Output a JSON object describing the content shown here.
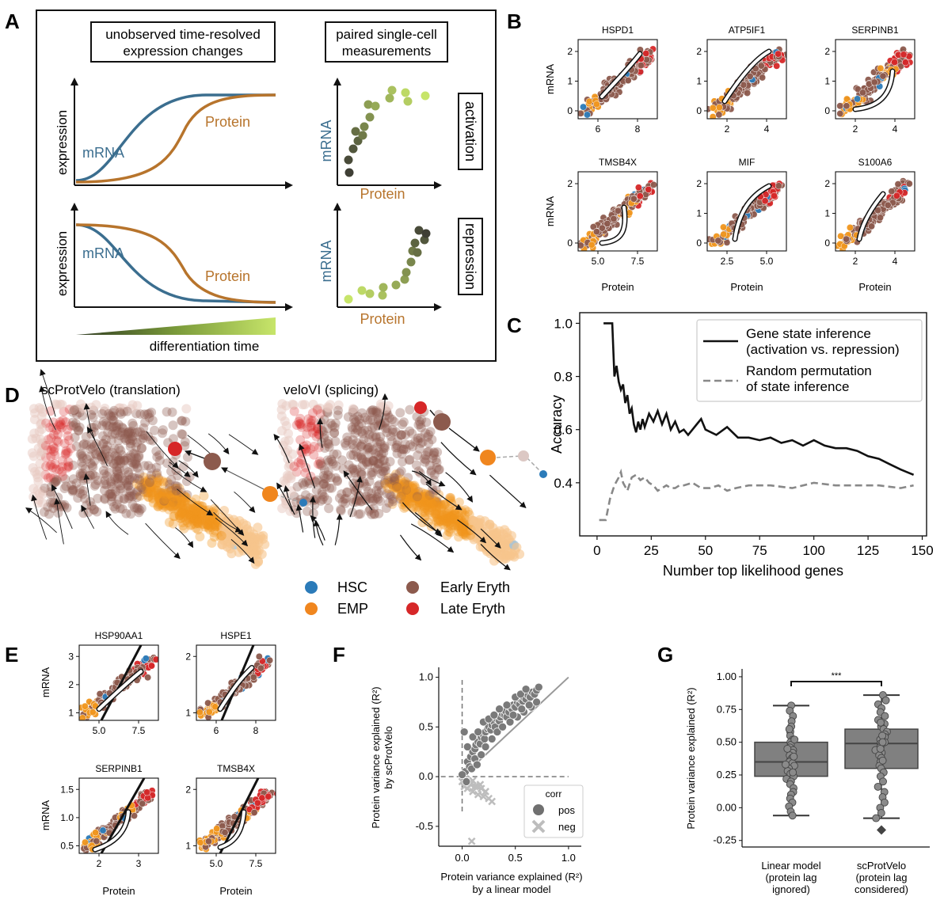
{
  "panel_labels": {
    "a": "A",
    "b": "B",
    "c": "C",
    "d": "D",
    "e": "E",
    "f": "F",
    "g": "G"
  },
  "panel_a": {
    "box_left": "unobserved time-resolved expression changes",
    "box_left_line1": "unobserved time-resolved",
    "box_left_line2": "expression changes",
    "box_right_line1": "paired single-cell",
    "box_right_line2": "measurements",
    "y_label": "expression",
    "mrna": "mRNA",
    "protein": "Protein",
    "activation": "activation",
    "repression": "repression",
    "time_label": "differentiation time",
    "colors": {
      "mrna": "#3b6e8f",
      "protein": "#b7742c",
      "dark": "#3f3f35",
      "light": "#c7e56a"
    }
  },
  "panel_b": {
    "genes": [
      "HSPD1",
      "ATP5IF1",
      "SERPINB1",
      "TMSB4X",
      "MIF",
      "S100A6"
    ],
    "y_label": "mRNA",
    "x_label": "Protein",
    "xticks": [
      [
        "6",
        "8"
      ],
      [
        "2",
        "4"
      ],
      [
        "2",
        "4"
      ],
      [
        "5.0",
        "7.5"
      ],
      [
        "2.5",
        "5.0"
      ],
      [
        "2",
        "4"
      ]
    ],
    "yticks": [
      [
        "0",
        "1",
        "2"
      ],
      [
        "0",
        "1",
        "2"
      ],
      [
        "0",
        "1",
        "2"
      ],
      [
        "0",
        "2"
      ],
      [
        "0",
        "1",
        "2"
      ],
      [
        "0",
        "1",
        "2"
      ]
    ]
  },
  "panel_c": {
    "chart_data": {
      "type": "line",
      "xlabel": "Number top likelihood genes",
      "ylabel": "Accuracy",
      "xlim": [
        -8,
        152
      ],
      "ylim": [
        0.2,
        1.04
      ],
      "xticks": [
        "0",
        "25",
        "50",
        "75",
        "100",
        "125",
        "150"
      ],
      "yticks": [
        "0.4",
        "0.6",
        "0.8",
        "1.0"
      ],
      "legend": "top-right",
      "series": [
        {
          "name": "Gene state inference (activation vs. repression)",
          "line1": "Gene state inference",
          "line2": "(activation vs. repression)",
          "style": "solid",
          "x": [
            3,
            7,
            8,
            9,
            10,
            11,
            12,
            13,
            14,
            15,
            16,
            17,
            18,
            19,
            20,
            21,
            22,
            24,
            26,
            28,
            30,
            32,
            34,
            36,
            38,
            40,
            42,
            44,
            46,
            48,
            50,
            55,
            60,
            65,
            70,
            75,
            80,
            85,
            90,
            95,
            100,
            105,
            110,
            115,
            120,
            125,
            130,
            135,
            140,
            146
          ],
          "y": [
            1.0,
            1.0,
            0.8,
            0.84,
            0.78,
            0.75,
            0.77,
            0.7,
            0.73,
            0.66,
            0.68,
            0.62,
            0.59,
            0.63,
            0.6,
            0.64,
            0.61,
            0.66,
            0.63,
            0.67,
            0.62,
            0.66,
            0.6,
            0.63,
            0.59,
            0.6,
            0.58,
            0.6,
            0.62,
            0.64,
            0.6,
            0.58,
            0.61,
            0.57,
            0.57,
            0.56,
            0.57,
            0.55,
            0.56,
            0.54,
            0.56,
            0.54,
            0.53,
            0.53,
            0.52,
            0.5,
            0.49,
            0.47,
            0.45,
            0.43
          ]
        },
        {
          "name": "Random permutation of state inference",
          "line1": "Random permutation",
          "line2": "of state inference",
          "style": "dashed",
          "x": [
            1,
            4,
            6,
            8,
            10,
            11,
            12,
            14,
            16,
            18,
            20,
            22,
            24,
            26,
            28,
            30,
            32,
            34,
            36,
            38,
            40,
            44,
            48,
            52,
            56,
            60,
            64,
            70,
            80,
            90,
            100,
            110,
            120,
            130,
            140,
            146
          ],
          "y": [
            0.26,
            0.26,
            0.34,
            0.39,
            0.42,
            0.44,
            0.4,
            0.37,
            0.42,
            0.43,
            0.41,
            0.42,
            0.4,
            0.39,
            0.37,
            0.38,
            0.39,
            0.38,
            0.38,
            0.39,
            0.39,
            0.4,
            0.38,
            0.38,
            0.39,
            0.37,
            0.38,
            0.39,
            0.39,
            0.38,
            0.4,
            0.39,
            0.39,
            0.39,
            0.38,
            0.39
          ]
        }
      ]
    }
  },
  "panel_d": {
    "left_title": "scProtVelo (translation)",
    "right_title": "veloVI (splicing)",
    "legend": [
      {
        "name": "HSC",
        "color": "#2b7bb9"
      },
      {
        "name": "EMP",
        "color": "#f0861e"
      },
      {
        "name": "Early Eryth",
        "color": "#8c5a4d"
      },
      {
        "name": "Late Eryth",
        "color": "#d62728"
      }
    ]
  },
  "panel_e": {
    "genes": [
      "HSP90AA1",
      "HSPE1",
      "SERPINB1",
      "TMSB4X"
    ],
    "y_label": "mRNA",
    "x_label": "Protein",
    "xticks": [
      [
        "5.0",
        "7.5"
      ],
      [
        "6",
        "8"
      ],
      [
        "2",
        "3"
      ],
      [
        "5.0",
        "7.5"
      ]
    ],
    "yticks": [
      [
        "1",
        "2",
        "3"
      ],
      [
        "1",
        "2"
      ],
      [
        "0.5",
        "1.0",
        "1.5"
      ],
      [
        "1",
        "2"
      ]
    ]
  },
  "panel_f": {
    "chart_data": {
      "type": "scatter",
      "xlabel_line1": "Protein variance explained (R²)",
      "xlabel_line2": "by a linear model",
      "ylabel_line1": "Protein variance explained (R²)",
      "ylabel_line2": "by scProtVelo",
      "xlim": [
        -0.22,
        1.12
      ],
      "ylim": [
        -0.7,
        1.1
      ],
      "xticks": [
        "0.0",
        "0.5",
        "1.0"
      ],
      "yticks": [
        "-0.5",
        "0.0",
        "0.5",
        "1.0"
      ],
      "legend_title": "corr",
      "legend_pos": "pos",
      "legend_neg": "neg",
      "series": [
        {
          "name": "pos",
          "x": [
            0.05,
            0.08,
            0.1,
            0.12,
            0.13,
            0.15,
            0.17,
            0.18,
            0.2,
            0.21,
            0.22,
            0.24,
            0.25,
            0.27,
            0.28,
            0.3,
            0.31,
            0.33,
            0.35,
            0.36,
            0.38,
            0.4,
            0.41,
            0.42,
            0.44,
            0.45,
            0.47,
            0.48,
            0.5,
            0.52,
            0.54,
            0.55,
            0.57,
            0.58,
            0.6,
            0.62,
            0.64,
            0.66,
            0.68,
            0.7,
            0.72,
            0.05,
            0.02,
            0.1,
            0.15,
            0.2,
            0.25,
            0.3,
            0.35,
            0.42,
            0.5,
            0.55,
            0.6,
            0.03,
            0.07,
            0.12,
            0.18,
            0.22,
            0.28,
            0.33,
            0.38,
            0.45,
            0.52,
            0.58,
            0.65,
            0.7,
            0.0,
            0.04,
            0.09,
            0.14,
            0.48,
            0.56,
            0.63
          ],
          "y": [
            0.15,
            0.2,
            0.25,
            0.28,
            0.32,
            0.35,
            0.33,
            0.4,
            0.42,
            0.38,
            0.45,
            0.48,
            0.5,
            0.47,
            0.52,
            0.55,
            0.5,
            0.58,
            0.56,
            0.6,
            0.63,
            0.62,
            0.66,
            0.6,
            0.65,
            0.7,
            0.68,
            0.72,
            0.7,
            0.75,
            0.73,
            0.78,
            0.76,
            0.8,
            0.78,
            0.82,
            0.8,
            0.85,
            0.83,
            0.87,
            0.9,
            0.3,
            0.45,
            0.4,
            0.45,
            0.55,
            0.58,
            0.62,
            0.68,
            0.72,
            0.8,
            0.83,
            0.88,
            0.05,
            0.1,
            0.18,
            0.22,
            0.3,
            0.38,
            0.45,
            0.5,
            0.55,
            0.6,
            0.65,
            0.7,
            0.75,
            0.02,
            -0.05,
            0.08,
            0.12,
            0.62,
            0.68,
            0.72
          ]
        },
        {
          "name": "neg",
          "x": [
            0.0,
            0.02,
            0.05,
            0.08,
            0.1,
            0.12,
            0.15,
            0.18,
            0.2,
            0.22,
            0.25,
            0.28,
            0.03,
            0.06,
            0.1,
            0.14,
            0.17,
            0.09
          ],
          "y": [
            -0.05,
            -0.1,
            -0.12,
            -0.08,
            -0.15,
            -0.1,
            -0.18,
            -0.12,
            -0.2,
            -0.15,
            -0.22,
            -0.25,
            -0.02,
            -0.06,
            -0.04,
            -0.1,
            -0.08,
            -0.65
          ]
        }
      ]
    }
  },
  "panel_g": {
    "chart_data": {
      "type": "box",
      "ylabel": "Protein variance explained (R²)",
      "ylim": [
        -0.3,
        1.06
      ],
      "yticks": [
        "-0.25",
        "0.00",
        "0.25",
        "0.50",
        "0.75",
        "1.00"
      ],
      "significance": "***",
      "groups": [
        {
          "name": "Linear model (protein lag ignored)",
          "line1": "Linear model",
          "line2": "(protein lag",
          "line3": "ignored)",
          "whisker_low": -0.06,
          "q1": 0.24,
          "median": 0.35,
          "q3": 0.5,
          "whisker_high": 0.78,
          "points": [
            0.78,
            0.74,
            0.7,
            0.66,
            0.62,
            0.58,
            0.55,
            0.52,
            0.5,
            0.48,
            0.46,
            0.44,
            0.42,
            0.4,
            0.38,
            0.36,
            0.35,
            0.34,
            0.32,
            0.3,
            0.28,
            0.26,
            0.24,
            0.22,
            0.2,
            0.18,
            0.15,
            0.12,
            0.1,
            0.07,
            0.04,
            0.01,
            -0.03,
            -0.06,
            0.45,
            0.33,
            0.27,
            0.39,
            0.52,
            0.6
          ]
        },
        {
          "name": "scProtVelo (protein lag considered)",
          "line1": "scProtVelo",
          "line2": "(protein lag",
          "line3": "considered)",
          "whisker_low": -0.08,
          "q1": 0.3,
          "median": 0.49,
          "q3": 0.6,
          "whisker_high": 0.86,
          "outlier": -0.17,
          "points": [
            0.86,
            0.82,
            0.79,
            0.76,
            0.73,
            0.7,
            0.67,
            0.64,
            0.62,
            0.6,
            0.58,
            0.56,
            0.54,
            0.52,
            0.5,
            0.49,
            0.48,
            0.46,
            0.44,
            0.42,
            0.4,
            0.38,
            0.35,
            0.32,
            0.3,
            0.27,
            0.24,
            0.2,
            0.16,
            0.12,
            0.08,
            0.04,
            0.0,
            -0.04,
            -0.08,
            0.55,
            0.45,
            0.36,
            0.65,
            0.5
          ]
        }
      ]
    }
  }
}
